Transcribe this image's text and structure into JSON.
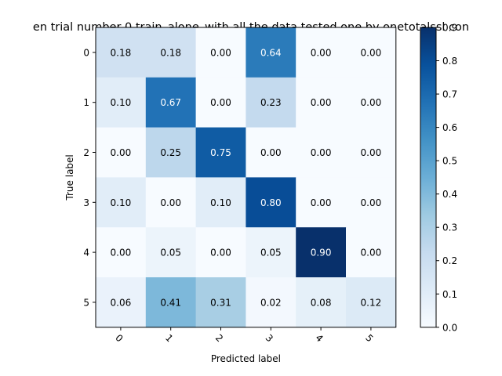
{
  "chart_data": {
    "type": "heatmap",
    "title": "en trial number 0  train_alone_with all the data tested one by onetotalssl con",
    "xlabel": "Predicted label",
    "ylabel": "True label",
    "x_categories": [
      "0",
      "1",
      "2",
      "3",
      "4",
      "5"
    ],
    "y_categories": [
      "0",
      "1",
      "2",
      "3",
      "4",
      "5"
    ],
    "values": [
      [
        0.18,
        0.18,
        0.0,
        0.64,
        0.0,
        0.0
      ],
      [
        0.1,
        0.67,
        0.0,
        0.23,
        0.0,
        0.0
      ],
      [
        0.0,
        0.25,
        0.75,
        0.0,
        0.0,
        0.0
      ],
      [
        0.1,
        0.0,
        0.1,
        0.8,
        0.0,
        0.0
      ],
      [
        0.0,
        0.05,
        0.0,
        0.05,
        0.9,
        0.0
      ],
      [
        0.06,
        0.41,
        0.31,
        0.02,
        0.08,
        0.12
      ]
    ],
    "colorbar": {
      "min": 0.0,
      "max": 0.9,
      "ticks": [
        "0.0",
        "0.1",
        "0.2",
        "0.3",
        "0.4",
        "0.5",
        "0.6",
        "0.7",
        "0.8",
        "0.9"
      ]
    },
    "colormap": "Blues",
    "x_tick_rotation_deg": 45
  }
}
